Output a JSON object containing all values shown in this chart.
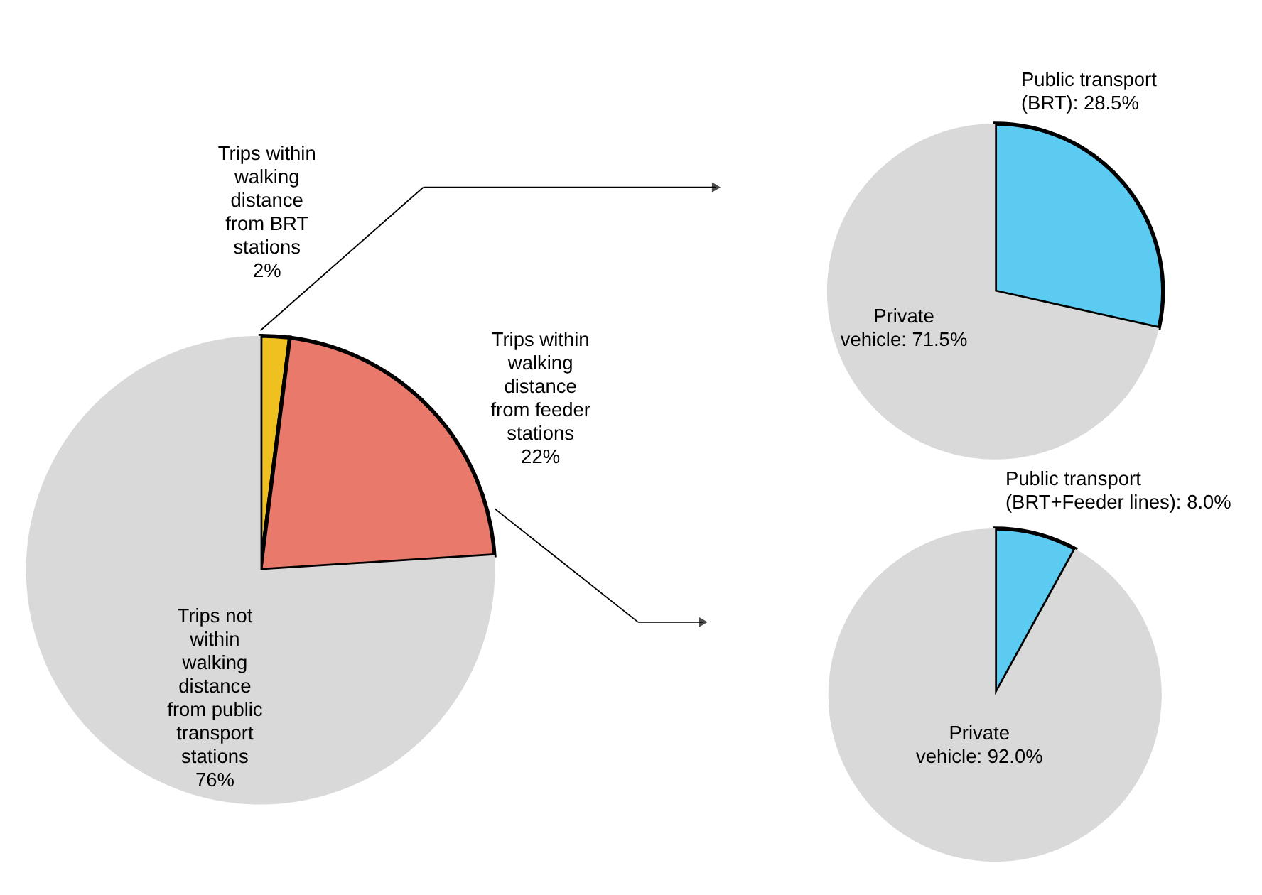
{
  "chart_data": [
    {
      "type": "pie",
      "categories": [
        "Trips within walking distance from BRT stations",
        "Trips within walking distance from feeder stations",
        "Trips not within walking distance from public transport stations"
      ],
      "values": [
        2,
        22,
        76
      ],
      "colors": [
        "#f0c020",
        "#e8796b",
        "#d9d9d9"
      ],
      "value_labels": [
        "2%",
        "22%",
        "76%"
      ],
      "legend": false
    },
    {
      "type": "pie",
      "categories": [
        "Public transport (BRT)",
        "Private vehicle"
      ],
      "values": [
        28.5,
        71.5
      ],
      "colors": [
        "#5bcbf2",
        "#d9d9d9"
      ],
      "value_labels": [
        "28.5%",
        "71.5%"
      ],
      "legend": false
    },
    {
      "type": "pie",
      "categories": [
        "Public transport (BRT+Feeder lines)",
        "Private vehicle"
      ],
      "values": [
        8.0,
        92.0
      ],
      "colors": [
        "#5bcbf2",
        "#d9d9d9"
      ],
      "value_labels": [
        "8.0%",
        "92.0%"
      ],
      "legend": false
    }
  ]
}
